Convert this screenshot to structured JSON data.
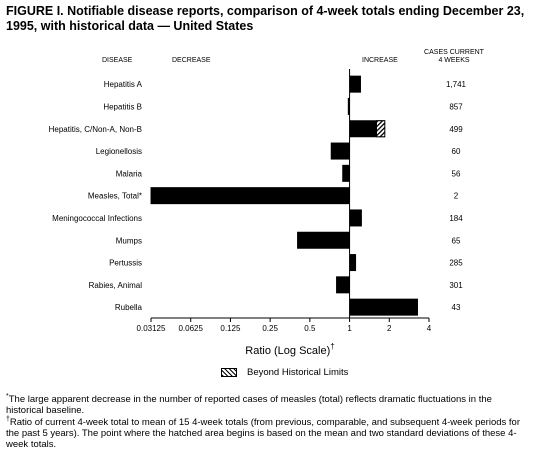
{
  "title": "FIGURE I. Notifiable disease reports, comparison of 4-week totals ending December 23, 1995, with historical data — United States",
  "chart_data": {
    "type": "bar",
    "orientation": "horizontal",
    "x_scale": "log2",
    "baseline": 1,
    "xlim": [
      0.03125,
      4
    ],
    "xticks": [
      "0.03125",
      "0.0625",
      "0.125",
      "0.25",
      "0.5",
      "1",
      "2",
      "4"
    ],
    "xlabel": "Ratio (Log Scale)",
    "xlabel_mark": "†",
    "headers": {
      "disease": "DISEASE",
      "decrease": "DECREASE",
      "increase": "INCREASE",
      "cases": "CASES CURRENT",
      "cases2": "4 WEEKS"
    },
    "categories": [
      "Hepatitis A",
      "Hepatitis B",
      "Hepatitis, C/Non-A, Non-B",
      "Legionellosis",
      "Malaria",
      "Measles, Total*",
      "Meningococcal Infections",
      "Mumps",
      "Pertussis",
      "Rabies, Animal",
      "Rubella"
    ],
    "values": [
      1.22,
      0.97,
      1.85,
      0.72,
      0.88,
      0.031,
      1.24,
      0.4,
      1.12,
      0.79,
      3.3
    ],
    "beyond_limits_from": [
      null,
      null,
      1.6,
      null,
      null,
      null,
      null,
      null,
      null,
      null,
      null
    ],
    "cases_current_4_weeks": [
      "1,741",
      "857",
      "499",
      "60",
      "56",
      "2",
      "184",
      "65",
      "285",
      "301",
      "43"
    ],
    "legend": "Beyond Historical Limits",
    "colors": {
      "bar": "#000000",
      "background": "#ffffff"
    }
  },
  "footnotes": {
    "star_mark": "*",
    "star": "The large apparent decrease in the number of reported cases of measles (total) reflects dramatic fluctuations in the historical baseline.",
    "dagger_mark": "†",
    "dagger": "Ratio of current 4-week total to mean of 15 4-week totals (from previous, comparable, and subsequent 4-week periods for the past 5 years). The point where the hatched area begins is based on the mean and two standard deviations of these 4-week totals."
  }
}
